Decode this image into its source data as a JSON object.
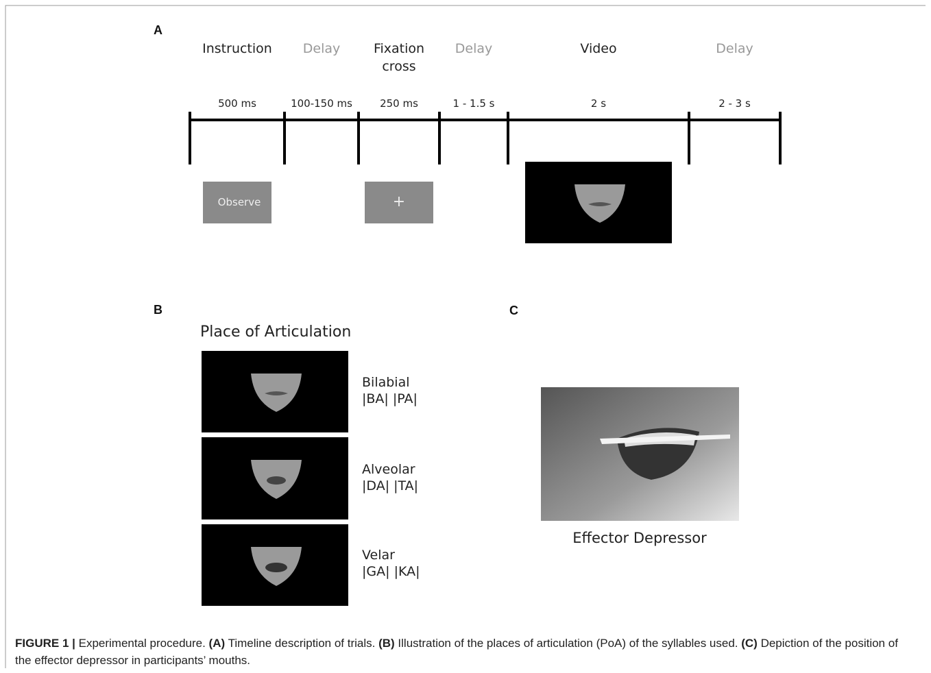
{
  "panel_a": {
    "label": "A",
    "phases": [
      {
        "name": "Instruction",
        "duration": "500 ms",
        "muted": false
      },
      {
        "name": "Delay",
        "duration": "100-150 ms",
        "muted": true
      },
      {
        "name": "Fixation cross",
        "duration": "250 ms",
        "muted": false
      },
      {
        "name": "Delay",
        "duration": "1 - 1.5 s",
        "muted": true
      },
      {
        "name": "Video",
        "duration": "2 s",
        "muted": false
      },
      {
        "name": "Delay",
        "duration": "2 - 3 s",
        "muted": true
      }
    ],
    "observe_screen": "Observe",
    "fixation_screen": "+"
  },
  "panel_b": {
    "label": "B",
    "title": "Place of Articulation",
    "items": [
      {
        "name": "Bilabial",
        "syllables": "|BA| |PA|"
      },
      {
        "name": "Alveolar",
        "syllables": "|DA| |TA|"
      },
      {
        "name": "Velar",
        "syllables": "|GA| |KA|"
      }
    ]
  },
  "panel_c": {
    "label": "C",
    "caption": "Effector Depressor"
  },
  "caption": [
    {
      "text": "FIGURE 1 |",
      "bold": true
    },
    {
      "text": " Experimental procedure. ",
      "bold": false
    },
    {
      "text": "(A)",
      "bold": true
    },
    {
      "text": " Timeline description of trials. ",
      "bold": false
    },
    {
      "text": "(B)",
      "bold": true
    },
    {
      "text": " Illustration of the places of articulation (PoA) of the syllables used. ",
      "bold": false
    },
    {
      "text": "(C)",
      "bold": true
    },
    {
      "text": " Depiction of the position of the effector depressor in participants’ mouths.",
      "bold": false
    }
  ]
}
